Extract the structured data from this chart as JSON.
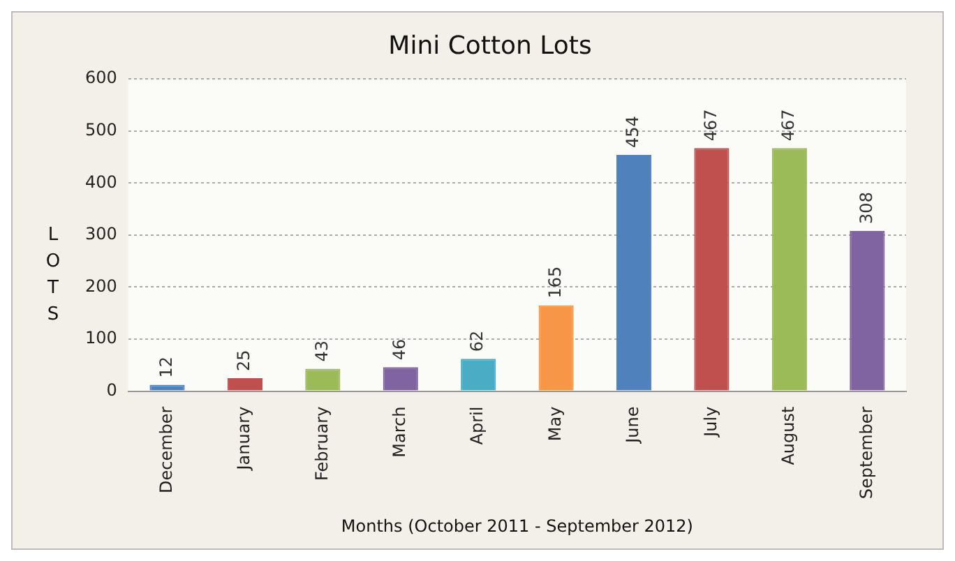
{
  "chart_data": {
    "type": "bar",
    "title": "Mini Cotton Lots",
    "xlabel": "Months (October 2011 - September 2012)",
    "ylabel": "LOTS",
    "categories": [
      "December",
      "January",
      "February",
      "March",
      "April",
      "May",
      "June",
      "July",
      "August",
      "September"
    ],
    "values": [
      12,
      25,
      43,
      46,
      62,
      165,
      454,
      467,
      467,
      308
    ],
    "colors": [
      "#4f81bd",
      "#c0504d",
      "#9bbb59",
      "#8064a2",
      "#4bacc6",
      "#f79646",
      "#4f81bd",
      "#c0504d",
      "#9bbb59",
      "#8064a2"
    ],
    "ylim": [
      0,
      600
    ],
    "yticks": [
      0,
      100,
      200,
      300,
      400,
      500,
      600
    ],
    "grid": "y",
    "data_labels": true,
    "legend": false
  }
}
